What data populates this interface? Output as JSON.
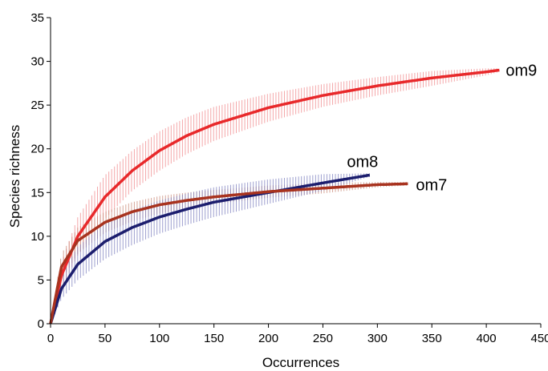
{
  "chart_data": {
    "type": "line",
    "xlabel": "Occurrences",
    "ylabel": "Species richness",
    "xlim": [
      0,
      450
    ],
    "ylim": [
      0,
      35
    ],
    "x_ticks": [
      0,
      50,
      100,
      150,
      200,
      250,
      300,
      350,
      400,
      450
    ],
    "y_ticks": [
      0,
      5,
      10,
      15,
      20,
      25,
      30,
      35
    ],
    "grid": false,
    "legend": "none (series labelled at line ends)",
    "series": [
      {
        "name": "om9",
        "color": "#e8292b",
        "band_color": "#f08a8c",
        "x": [
          0,
          10,
          25,
          50,
          75,
          100,
          125,
          150,
          200,
          250,
          300,
          350,
          400,
          412
        ],
        "y": [
          0,
          5.5,
          10.0,
          14.5,
          17.5,
          19.8,
          21.5,
          22.8,
          24.7,
          26.1,
          27.2,
          28.1,
          28.8,
          29.0
        ],
        "lower": [
          0,
          4.0,
          7.8,
          12.0,
          15.2,
          17.5,
          19.4,
          20.9,
          23.1,
          24.8,
          26.1,
          27.2,
          28.4,
          28.8
        ],
        "upper": [
          0,
          7.0,
          12.2,
          17.0,
          19.8,
          22.0,
          23.6,
          24.8,
          26.3,
          27.4,
          28.2,
          28.9,
          29.2,
          29.2
        ]
      },
      {
        "name": "om8",
        "color": "#1c1e6e",
        "band_color": "#7d80bf",
        "x": [
          0,
          10,
          25,
          50,
          75,
          100,
          125,
          150,
          200,
          250,
          293
        ],
        "y": [
          0,
          4.0,
          6.8,
          9.4,
          11.0,
          12.2,
          13.1,
          13.9,
          15.0,
          16.1,
          17.0
        ],
        "lower": [
          0,
          2.8,
          5.0,
          7.4,
          9.0,
          10.3,
          11.3,
          12.2,
          13.7,
          15.2,
          16.8
        ],
        "upper": [
          0,
          5.6,
          8.8,
          11.5,
          13.0,
          14.1,
          14.9,
          15.6,
          16.5,
          17.1,
          17.2
        ]
      },
      {
        "name": "om7",
        "color": "#a8331f",
        "band_color": "#c98a78",
        "x": [
          0,
          10,
          25,
          50,
          75,
          100,
          125,
          150,
          200,
          250,
          300,
          328
        ],
        "y": [
          0,
          6.5,
          9.5,
          11.6,
          12.8,
          13.6,
          14.1,
          14.5,
          15.1,
          15.5,
          15.9,
          16.0
        ],
        "lower": [
          0,
          5.0,
          8.0,
          10.4,
          11.7,
          12.6,
          13.2,
          13.7,
          14.4,
          14.9,
          15.6,
          15.8
        ],
        "upper": [
          0,
          8.0,
          11.0,
          12.8,
          13.9,
          14.6,
          15.0,
          15.3,
          15.8,
          16.1,
          16.2,
          16.2
        ]
      }
    ]
  }
}
